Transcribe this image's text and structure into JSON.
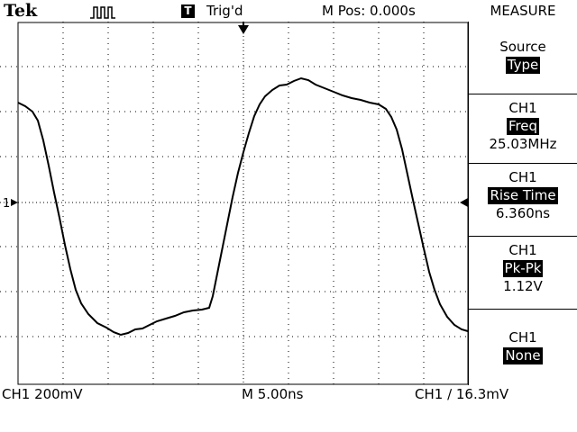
{
  "header": {
    "brand": "Tek",
    "trigger_icon": "T",
    "trigger_status": "Trig'd",
    "position": "M Pos: 0.000s",
    "menu_title": "MEASURE"
  },
  "menu": {
    "source_label": "Source",
    "source_value": "Type",
    "items": [
      {
        "channel": "CH1",
        "type": "Freq",
        "value": "25.03MHz"
      },
      {
        "channel": "CH1",
        "type": "Rise Time",
        "value": "6.360ns"
      },
      {
        "channel": "CH1",
        "type": "Pk-Pk",
        "value": "1.12V"
      },
      {
        "channel": "CH1",
        "type": "None",
        "value": ""
      }
    ]
  },
  "footer": {
    "ch1_scale": "CH1  200mV",
    "timebase": "M 5.00ns",
    "trigger_setting": "CH1 ∕ 16.3mV"
  },
  "markers": {
    "ground_label": "1"
  },
  "colors": {
    "background": "#ffffff",
    "foreground": "#000000"
  }
}
